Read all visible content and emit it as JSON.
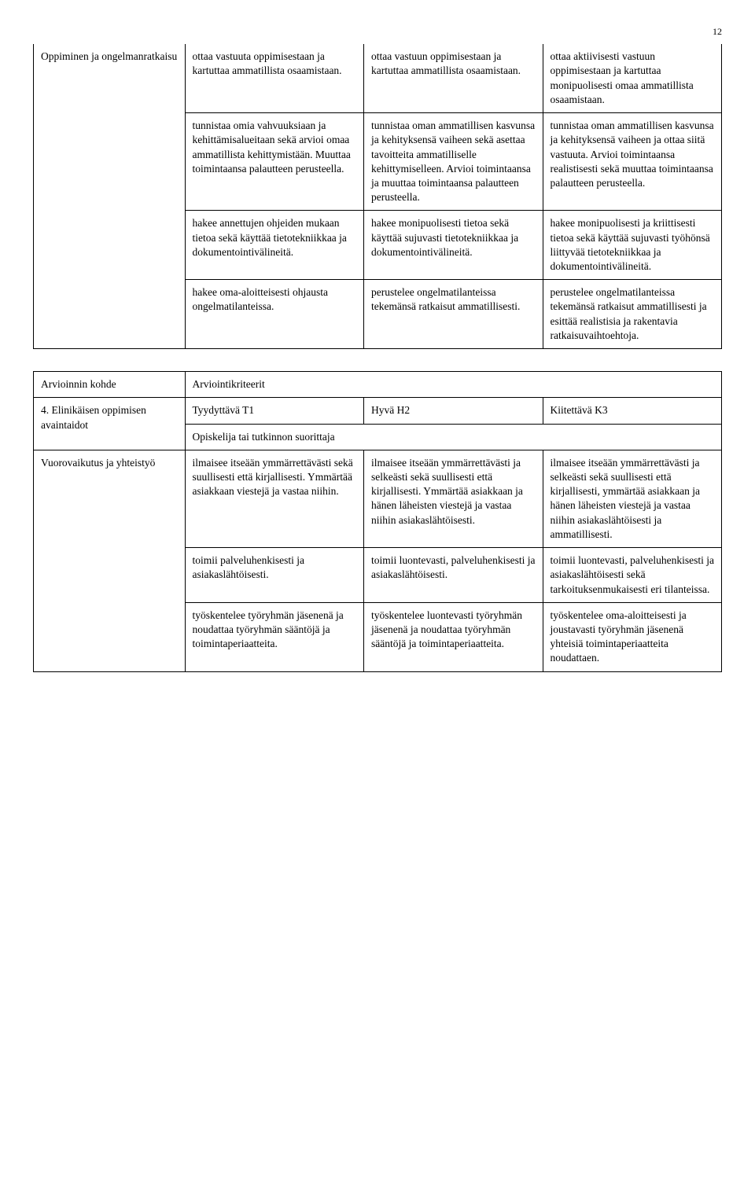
{
  "page_number": "12",
  "table1": {
    "row_label": "Oppiminen ja ongelmanratkaisu",
    "rows": [
      {
        "c1": "ottaa vastuuta oppimisestaan ja kartuttaa ammatillista osaamistaan.",
        "c2": "ottaa vastuun oppimisestaan ja kartuttaa ammatillista osaamistaan.",
        "c3": "ottaa aktiivisesti vastuun oppimisestaan ja kartuttaa monipuolisesti omaa ammatillista osaamistaan."
      },
      {
        "c1": "tunnistaa omia vahvuuksiaan ja kehittämisalueitaan sekä arvioi omaa ammatillista kehittymistään. Muuttaa toimintaansa palautteen perusteella.",
        "c2": "tunnistaa oman ammatillisen kasvunsa ja kehityksensä vaiheen sekä asettaa tavoitteita ammatilliselle kehittymiselleen. Arvioi toimintaansa ja muuttaa toimintaansa palautteen perusteella.",
        "c3": "tunnistaa oman ammatillisen kasvunsa ja kehityksensä vaiheen ja ottaa siitä vastuuta. Arvioi toimintaansa realistisesti sekä muuttaa toimintaansa palautteen perusteella."
      },
      {
        "c1": "hakee annettujen ohjeiden mukaan tietoa sekä käyttää tietotekniikkaa ja dokumentointivälineitä.",
        "c2": "hakee monipuolisesti tietoa sekä käyttää sujuvasti tietotekniikkaa ja dokumentointivälineitä.",
        "c3": "hakee monipuolisesti ja kriittisesti tietoa sekä käyttää sujuvasti työhönsä liittyvää tietotekniikkaa ja dokumentointivälineitä."
      },
      {
        "c1": "hakee oma-aloitteisesti ohjausta ongelmatilanteissa.",
        "c2": "perustelee ongelmatilanteissa tekemänsä ratkaisut ammatillisesti.",
        "c3": "perustelee ongelmatilanteissa tekemänsä ratkaisut ammatillisesti ja esittää realistisia ja rakentavia ratkaisuvaihtoehtoja."
      }
    ]
  },
  "table2": {
    "header_left": "Arvioinnin kohde",
    "header_right": "Arviointikriteerit",
    "subheader_left": "4. Elinikäisen oppimisen avaintaidot",
    "subheader_c1": "Tyydyttävä T1",
    "subheader_c2": "Hyvä H2",
    "subheader_c3": "Kiitettävä K3",
    "subheader2": "Opiskelija tai tutkinnon suorittaja",
    "row_label": "Vuorovaikutus ja yhteistyö",
    "rows": [
      {
        "c1": "ilmaisee itseään ymmärrettävästi sekä suullisesti että kirjallisesti. Ymmärtää asiakkaan viestejä ja vastaa niihin.",
        "c2": "ilmaisee itseään ymmärrettävästi ja selkeästi sekä suullisesti että kirjallisesti. Ymmärtää asiakkaan ja hänen läheisten viestejä ja vastaa niihin asiakaslähtöisesti.",
        "c3": "ilmaisee itseään ymmärrettävästi ja selkeästi sekä suullisesti että kirjallisesti, ymmärtää    asiakkaan ja hänen läheisten viestejä ja vastaa niihin asiakaslähtöisesti ja ammatillisesti."
      },
      {
        "c1": "toimii palveluhenkisesti ja asiakaslähtöisesti.",
        "c2": "toimii luontevasti, palveluhenkisesti ja asiakaslähtöisesti.",
        "c3": "toimii luontevasti, palveluhenkisesti ja asiakaslähtöisesti sekä tarkoituksenmukaisesti eri tilanteissa."
      },
      {
        "c1": "työskentelee työryhmän jäsenenä ja noudattaa työryhmän sääntöjä ja toimintaperiaatteita.",
        "c2": "työskentelee luontevasti työryhmän jäsenenä ja noudattaa työryhmän sääntöjä ja toimintaperiaatteita.",
        "c3": "työskentelee oma-aloitteisesti ja joustavasti työryhmän jäsenenä yhteisiä toimintaperiaatteita noudattaen."
      }
    ]
  }
}
